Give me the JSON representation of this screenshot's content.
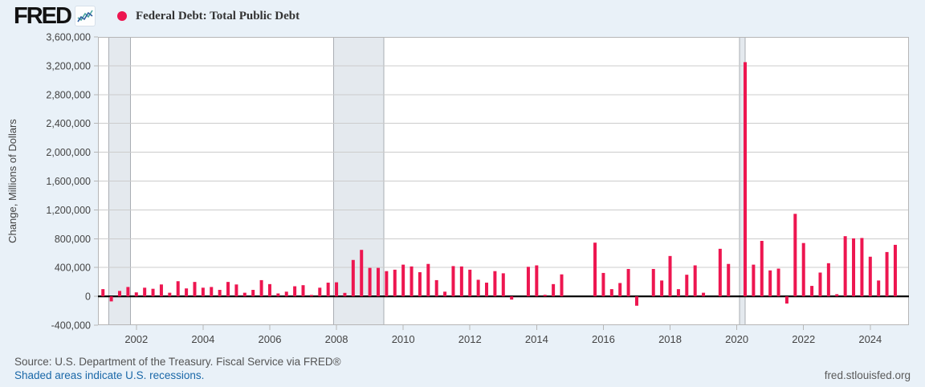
{
  "header": {
    "site_name": "FRED",
    "series_title": "Federal Debt: Total Public Debt",
    "accent_color": "#ed1650"
  },
  "chart_data": {
    "type": "bar",
    "title": "Federal Debt: Total Public Debt",
    "ylabel": "Change, Millions of Dollars",
    "ylim": [
      -400000,
      3600000
    ],
    "ytick_step": 400000,
    "xticks": [
      2002,
      2004,
      2006,
      2008,
      2010,
      2012,
      2014,
      2016,
      2018,
      2020,
      2022,
      2024
    ],
    "x_domain_years": [
      2000.85,
      2025.16
    ],
    "bar_color": "#ed1650",
    "grid_color": "#cccccc",
    "border_color": "#b6b6b6",
    "zero_line_color": "#000000",
    "recession_fill": "#e4e9ee",
    "recession_edge": "#a9adb3",
    "legend_position": "top-left",
    "grid": "horizontal-only",
    "frequency": "Quarterly",
    "start_quarter": "2001-Q1",
    "end_quarter": "2024-Q4",
    "recessions": [
      {
        "start": 2001.17,
        "end": 2001.83
      },
      {
        "start": 2007.92,
        "end": 2009.42
      },
      {
        "start": 2020.08,
        "end": 2020.25
      }
    ],
    "series": [
      {
        "name": "Federal Debt: Total Public Debt",
        "values": [
          100000,
          -70000,
          75000,
          130000,
          55000,
          120000,
          105000,
          165000,
          50000,
          210000,
          110000,
          200000,
          120000,
          130000,
          90000,
          200000,
          165000,
          50000,
          90000,
          225000,
          170000,
          40000,
          65000,
          140000,
          155000,
          20000,
          120000,
          190000,
          195000,
          48000,
          505000,
          645000,
          395000,
          395000,
          350000,
          370000,
          440000,
          415000,
          335000,
          450000,
          225000,
          65000,
          420000,
          415000,
          370000,
          230000,
          190000,
          350000,
          320000,
          -45000,
          0,
          410000,
          430000,
          22000,
          170000,
          305000,
          0,
          0,
          0,
          745000,
          325000,
          100000,
          185000,
          380000,
          -130000,
          0,
          380000,
          220000,
          560000,
          100000,
          300000,
          430000,
          50000,
          0,
          660000,
          450000,
          0,
          3250000,
          440000,
          770000,
          360000,
          385000,
          -100000,
          1145000,
          740000,
          145000,
          330000,
          460000,
          30000,
          835000,
          805000,
          810000,
          550000,
          220000,
          615000,
          715000
        ]
      }
    ]
  },
  "footer": {
    "source_line": "Source: U.S. Department of the Treasury. Fiscal Service via FRED®",
    "recession_note": "Shaded areas indicate U.S. recessions.",
    "site_link": "fred.stlouisfed.org"
  }
}
